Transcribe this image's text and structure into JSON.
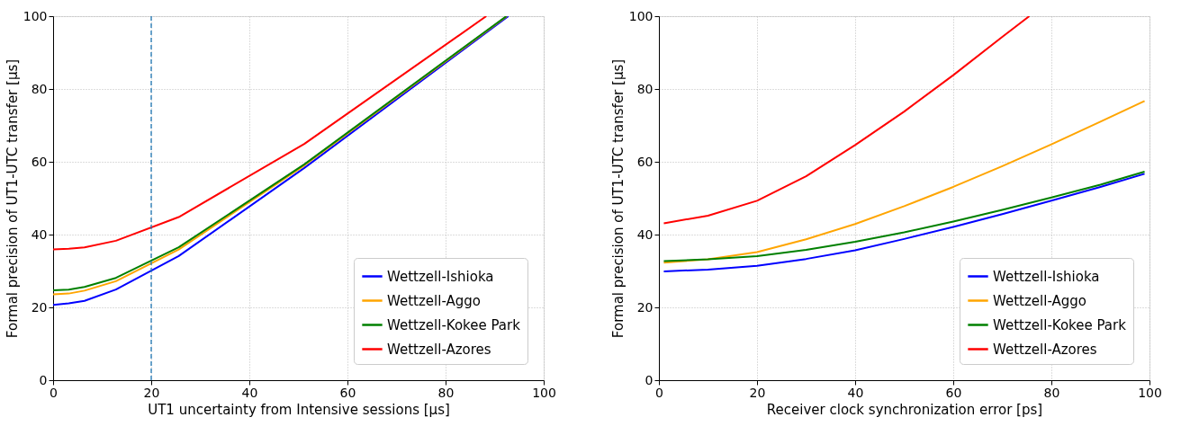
{
  "chart_data": [
    {
      "type": "line",
      "xlabel": "UT1 uncertainty from Intensive sessions [μs]",
      "ylabel": "Formal precision of UT1-UTC transfer [μs]",
      "xlim": [
        0,
        100
      ],
      "ylim": [
        0,
        100
      ],
      "xticks": [
        0,
        20,
        40,
        60,
        80,
        100
      ],
      "yticks": [
        0,
        20,
        40,
        60,
        80,
        100
      ],
      "grid": true,
      "legend": "bottom right",
      "series": [
        {
          "name": "Wettzell-Ishioka",
          "color": "#0000ff",
          "x": [
            0,
            3.2,
            6.4,
            12.8,
            25.6,
            51.2,
            92.8
          ],
          "values": [
            20.7,
            21.1,
            21.8,
            24.9,
            34.1,
            58.3,
            100
          ]
        },
        {
          "name": "Wettzell-Aggo",
          "color": "#ffa500",
          "x": [
            0,
            3.2,
            6.4,
            12.8,
            25.6,
            51.2,
            92.5
          ],
          "values": [
            23.6,
            23.8,
            24.6,
            27.2,
            35.9,
            59.0,
            100
          ]
        },
        {
          "name": "Wettzell-Kokee Park",
          "color": "#008000",
          "x": [
            0,
            3.2,
            6.4,
            12.8,
            25.6,
            51.2,
            92.4
          ],
          "values": [
            24.7,
            24.9,
            25.6,
            28.1,
            36.5,
            59.3,
            100
          ]
        },
        {
          "name": "Wettzell-Azores",
          "color": "#ff0000",
          "x": [
            0,
            3.2,
            6.4,
            12.8,
            25.6,
            51.2,
            88.3
          ],
          "values": [
            35.9,
            36.1,
            36.5,
            38.3,
            44.8,
            64.9,
            100
          ]
        }
      ],
      "ref_lines": [
        {
          "axis": "x",
          "value": 20,
          "color": "#1f77b4",
          "line_style": "dashed"
        }
      ]
    },
    {
      "type": "line",
      "xlabel": "Receiver clock synchronization error [ps]",
      "ylabel": "Formal precision of UT1-UTC transfer [μs]",
      "xlim": [
        0,
        100
      ],
      "ylim": [
        0,
        100
      ],
      "xticks": [
        0,
        20,
        40,
        60,
        80,
        100
      ],
      "yticks": [
        0,
        20,
        40,
        60,
        80,
        100
      ],
      "grid": true,
      "legend": "bottom right",
      "series": [
        {
          "name": "Wettzell-Ishioka",
          "color": "#0000ff",
          "x": [
            1,
            10,
            20,
            30,
            40,
            50,
            60,
            70,
            80,
            90,
            99
          ],
          "values": [
            29.9,
            30.4,
            31.4,
            33.3,
            35.7,
            38.8,
            42.1,
            45.6,
            49.3,
            53.1,
            56.7
          ]
        },
        {
          "name": "Wettzell-Aggo",
          "color": "#ffa500",
          "x": [
            1,
            10,
            20,
            30,
            40,
            50,
            60,
            70,
            80,
            90,
            99
          ],
          "values": [
            32.3,
            33.2,
            35.2,
            38.7,
            42.9,
            47.8,
            53.1,
            58.8,
            64.8,
            71.0,
            76.7
          ]
        },
        {
          "name": "Wettzell-Kokee Park",
          "color": "#008000",
          "x": [
            1,
            10,
            20,
            30,
            40,
            50,
            60,
            70,
            80,
            90,
            99
          ],
          "values": [
            32.7,
            33.2,
            34.1,
            35.8,
            38.0,
            40.6,
            43.6,
            46.8,
            50.2,
            53.7,
            57.3
          ]
        },
        {
          "name": "Wettzell-Azores",
          "color": "#ff0000",
          "x": [
            1,
            10,
            20,
            30,
            40,
            50,
            60,
            70,
            75.5
          ],
          "values": [
            43.1,
            45.2,
            49.3,
            56.0,
            64.6,
            73.8,
            83.8,
            94.3,
            100
          ]
        }
      ]
    }
  ]
}
